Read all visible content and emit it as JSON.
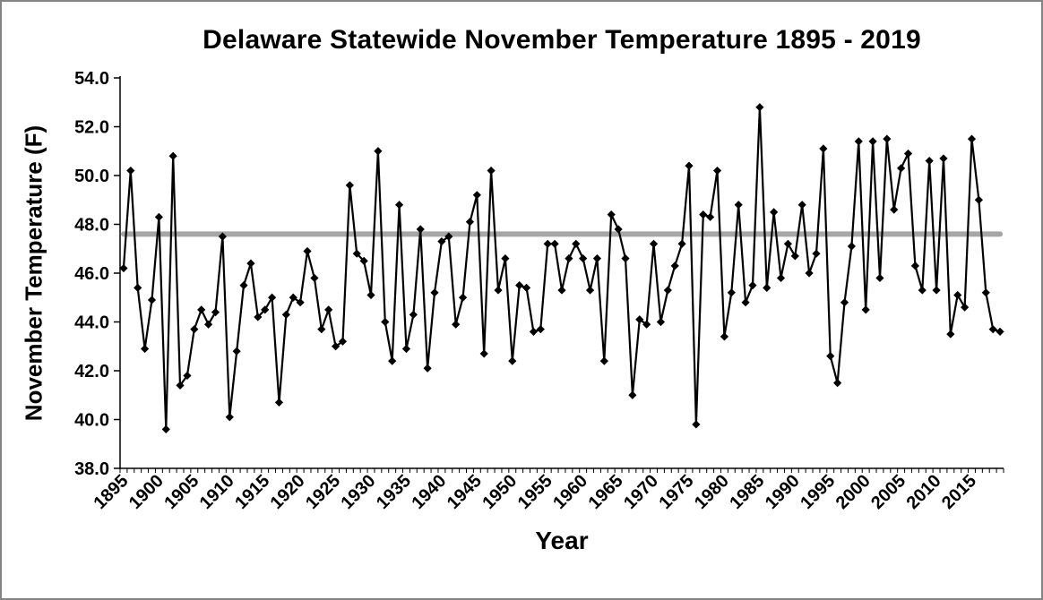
{
  "chart_data": {
    "type": "line",
    "title": "Delaware Statewide November Temperature 1895 - 2019",
    "xlabel": "Year",
    "ylabel": "November Temperature (F)",
    "x_start": 1895,
    "x_end": 2019,
    "x_ticks": [
      "1895",
      "1900",
      "1905",
      "1910",
      "1915",
      "1920",
      "1925",
      "1930",
      "1935",
      "1940",
      "1945",
      "1950",
      "1955",
      "1960",
      "1965",
      "1970",
      "1975",
      "1980",
      "1985",
      "1990",
      "1995",
      "2000",
      "2005",
      "2010",
      "2015"
    ],
    "ylim": [
      38,
      54
    ],
    "y_tick_step": 2,
    "y_ticks": [
      "38.0",
      "40.0",
      "42.0",
      "44.0",
      "46.0",
      "48.0",
      "50.0",
      "52.0",
      "54.0"
    ],
    "mean_line_value": 47.6,
    "grid": false,
    "legend_position": "none",
    "marker": "diamond",
    "series": [
      {
        "name": "November Temperature (F)",
        "values": [
          46.2,
          50.2,
          45.4,
          42.9,
          44.9,
          48.3,
          39.6,
          50.8,
          41.4,
          41.8,
          43.7,
          44.5,
          43.9,
          44.4,
          47.5,
          40.1,
          42.8,
          45.5,
          46.4,
          44.2,
          44.5,
          45.0,
          40.7,
          44.3,
          45.0,
          44.8,
          46.9,
          45.8,
          43.7,
          44.5,
          43.0,
          43.2,
          49.6,
          46.8,
          46.5,
          45.1,
          51.0,
          44.0,
          42.4,
          48.8,
          42.9,
          44.3,
          47.8,
          42.1,
          45.2,
          47.3,
          47.5,
          43.9,
          45.0,
          48.1,
          49.2,
          42.7,
          50.2,
          45.3,
          46.6,
          42.4,
          45.5,
          45.4,
          43.6,
          43.7,
          47.2,
          47.2,
          45.3,
          46.6,
          47.2,
          46.6,
          45.3,
          46.6,
          42.4,
          48.4,
          47.8,
          46.6,
          41.0,
          44.1,
          43.9,
          47.2,
          44.0,
          45.3,
          46.3,
          47.2,
          50.4,
          39.8,
          48.4,
          48.3,
          50.2,
          43.4,
          45.2,
          48.8,
          44.8,
          45.5,
          52.8,
          45.4,
          48.5,
          45.8,
          47.2,
          46.7,
          48.8,
          46.0,
          46.8,
          51.1,
          42.6,
          41.5,
          44.8,
          47.1,
          51.4,
          44.5,
          51.4,
          45.8,
          51.5,
          48.6,
          50.3,
          50.9,
          46.3,
          45.3,
          50.6,
          45.3,
          50.7,
          43.5,
          45.1,
          44.6,
          51.5,
          49.0,
          45.2,
          43.7,
          43.6
        ]
      }
    ],
    "colors": {
      "line": "#000000",
      "marker": "#000000",
      "mean_line": "#a6a6a6",
      "text": "#000000",
      "background": "#ffffff",
      "frame": "#848484"
    }
  }
}
